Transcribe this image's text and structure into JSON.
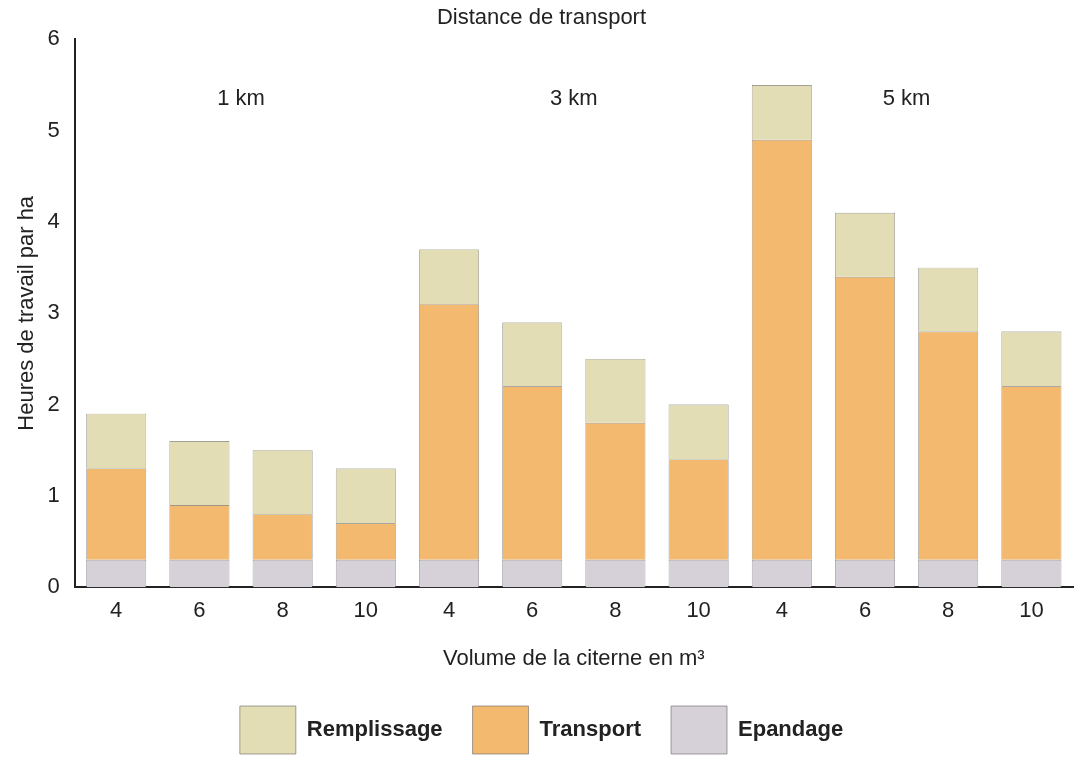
{
  "chart_data": {
    "type": "bar",
    "title": "Distance de transport",
    "xlabel": "Volume de la citerne en m³",
    "ylabel": "Heures de travail par ha",
    "categories": [
      "4",
      "6",
      "8",
      "10",
      "4",
      "6",
      "8",
      "10",
      "4",
      "6",
      "8",
      "10"
    ],
    "stacked": true,
    "series": [
      {
        "name": "Epandage",
        "color": "#d6d0d8",
        "values": [
          0.3,
          0.3,
          0.3,
          0.3,
          0.3,
          0.3,
          0.3,
          0.3,
          0.3,
          0.3,
          0.3,
          0.3
        ]
      },
      {
        "name": "Transport",
        "color": "#f3b96e",
        "values": [
          1.0,
          0.6,
          0.5,
          0.4,
          2.8,
          1.9,
          1.5,
          1.1,
          4.6,
          3.1,
          2.5,
          1.9
        ]
      },
      {
        "name": "Remplissage",
        "color": "#e3ddb5",
        "values": [
          0.6,
          0.7,
          0.7,
          0.6,
          0.6,
          0.7,
          0.7,
          0.6,
          0.6,
          0.7,
          0.7,
          0.6
        ]
      }
    ],
    "ylim": [
      0,
      6
    ],
    "yticks": [
      0,
      1,
      2,
      3,
      4,
      5,
      6
    ],
    "grid": false,
    "legend": "bottom",
    "annotations": [
      "1 km",
      "3 km",
      "5 km"
    ]
  }
}
